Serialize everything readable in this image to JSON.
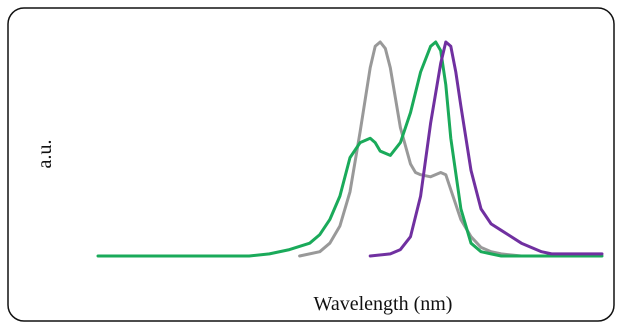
{
  "chart_data": {
    "type": "line",
    "title": "",
    "xlabel": "Wavelength (nm)",
    "ylabel": "a.u.",
    "x_ticks_shown": false,
    "y_ticks_shown": false,
    "grid": false,
    "legend": "none",
    "xlim": [
      0,
      100
    ],
    "ylim": [
      0,
      1
    ],
    "series": [
      {
        "color": "#999999",
        "x": [
          40,
          44,
          46,
          48,
          50,
          52,
          54,
          55,
          56,
          57,
          58,
          60,
          62,
          63,
          64,
          66,
          68,
          69,
          70,
          72,
          74,
          76,
          78,
          80,
          84,
          90
        ],
        "y": [
          0.0,
          0.02,
          0.06,
          0.14,
          0.3,
          0.58,
          0.88,
          0.98,
          1.0,
          0.97,
          0.88,
          0.6,
          0.43,
          0.39,
          0.38,
          0.37,
          0.39,
          0.38,
          0.31,
          0.17,
          0.09,
          0.04,
          0.02,
          0.01,
          0.0,
          0.0
        ]
      },
      {
        "color": "#1aaa5a",
        "x": [
          0,
          6,
          24,
          28,
          30,
          34,
          38,
          42,
          44,
          46,
          48,
          50,
          52,
          54,
          55,
          56,
          58,
          60,
          62,
          64,
          66,
          67,
          68,
          69,
          70,
          72,
          74,
          76,
          78,
          80,
          84,
          100
        ],
        "y": [
          0.0,
          0.0,
          0.0,
          0.0,
          0.0,
          0.01,
          0.03,
          0.06,
          0.1,
          0.17,
          0.28,
          0.46,
          0.53,
          0.55,
          0.53,
          0.49,
          0.47,
          0.53,
          0.67,
          0.86,
          0.98,
          1.0,
          0.96,
          0.8,
          0.55,
          0.22,
          0.06,
          0.02,
          0.01,
          0.0,
          0.0,
          0.0
        ]
      },
      {
        "color": "#7030a0",
        "x": [
          54,
          58,
          60,
          62,
          64,
          66,
          68,
          69,
          70,
          71,
          72,
          74,
          76,
          78,
          80,
          84,
          88,
          90,
          94,
          100
        ],
        "y": [
          0.0,
          0.01,
          0.03,
          0.09,
          0.28,
          0.62,
          0.9,
          1.0,
          0.98,
          0.86,
          0.7,
          0.4,
          0.22,
          0.15,
          0.12,
          0.06,
          0.02,
          0.01,
          0.01,
          0.01
        ]
      }
    ]
  }
}
